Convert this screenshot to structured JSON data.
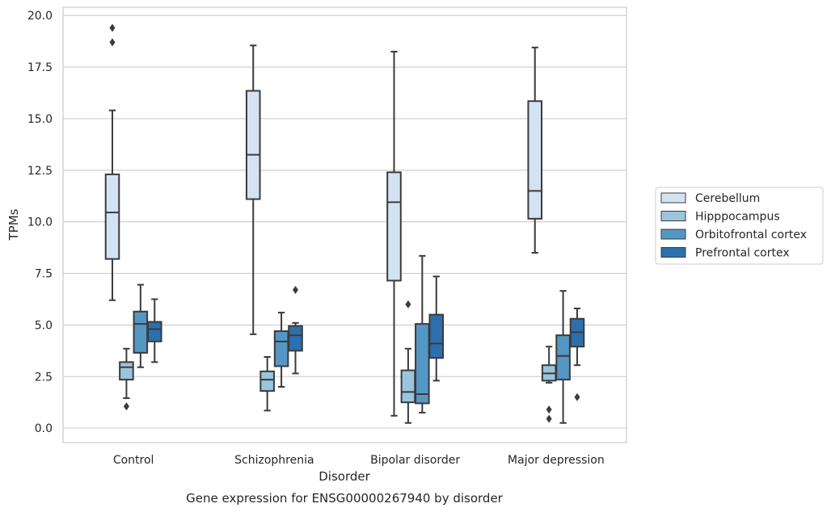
{
  "chart_data": {
    "type": "box",
    "title": "",
    "caption": "Gene expression for ENSG00000267940 by disorder",
    "xlabel": "Disorder",
    "ylabel": "TPMs",
    "ylim": [
      -0.7,
      20.4
    ],
    "yticks": [
      "0.0",
      "2.5",
      "5.0",
      "7.5",
      "10.0",
      "12.5",
      "15.0",
      "17.5",
      "20.0"
    ],
    "grid": "horizontal",
    "legend_position": "right",
    "categories": [
      "Control",
      "Schizophrenia",
      "Bipolar disorder",
      "Major depression"
    ],
    "series": [
      {
        "name": "Cerebellum",
        "color": "#d3e3f3",
        "boxes": [
          {
            "whisker_low": 6.2,
            "q1": 8.2,
            "median": 10.45,
            "q3": 12.3,
            "whisker_high": 15.4,
            "outliers": [
              18.7,
              19.4
            ]
          },
          {
            "whisker_low": 4.55,
            "q1": 11.1,
            "median": 13.25,
            "q3": 16.35,
            "whisker_high": 18.55,
            "outliers": []
          },
          {
            "whisker_low": 0.6,
            "q1": 7.15,
            "median": 10.95,
            "q3": 12.4,
            "whisker_high": 18.25,
            "outliers": []
          },
          {
            "whisker_low": 8.5,
            "q1": 10.15,
            "median": 11.5,
            "q3": 15.85,
            "whisker_high": 18.45,
            "outliers": []
          }
        ]
      },
      {
        "name": "Hipppocampus",
        "color": "#9ac5de",
        "boxes": [
          {
            "whisker_low": 1.45,
            "q1": 2.35,
            "median": 2.95,
            "q3": 3.2,
            "whisker_high": 3.85,
            "outliers": [
              1.05
            ]
          },
          {
            "whisker_low": 0.85,
            "q1": 1.8,
            "median": 2.35,
            "q3": 2.75,
            "whisker_high": 3.45,
            "outliers": []
          },
          {
            "whisker_low": 0.25,
            "q1": 1.25,
            "median": 1.75,
            "q3": 2.8,
            "whisker_high": 3.85,
            "outliers": [
              6.0
            ]
          },
          {
            "whisker_low": 2.2,
            "q1": 2.3,
            "median": 2.65,
            "q3": 3.05,
            "whisker_high": 3.95,
            "outliers": [
              0.45,
              0.9
            ]
          }
        ]
      },
      {
        "name": "Orbitofrontal cortex",
        "color": "#5497c5",
        "boxes": [
          {
            "whisker_low": 2.95,
            "q1": 3.65,
            "median": 5.05,
            "q3": 5.65,
            "whisker_high": 6.95,
            "outliers": []
          },
          {
            "whisker_low": 2.0,
            "q1": 3.0,
            "median": 4.2,
            "q3": 4.7,
            "whisker_high": 5.6,
            "outliers": []
          },
          {
            "whisker_low": 0.75,
            "q1": 1.2,
            "median": 1.65,
            "q3": 5.05,
            "whisker_high": 8.35,
            "outliers": []
          },
          {
            "whisker_low": 0.25,
            "q1": 2.35,
            "median": 3.5,
            "q3": 4.5,
            "whisker_high": 6.65,
            "outliers": []
          }
        ]
      },
      {
        "name": "Prefrontal cortex",
        "color": "#2c6fad",
        "boxes": [
          {
            "whisker_low": 3.2,
            "q1": 4.2,
            "median": 4.8,
            "q3": 5.15,
            "whisker_high": 6.25,
            "outliers": []
          },
          {
            "whisker_low": 2.65,
            "q1": 3.75,
            "median": 4.5,
            "q3": 4.95,
            "whisker_high": 5.1,
            "outliers": [
              6.7
            ]
          },
          {
            "whisker_low": 2.3,
            "q1": 3.4,
            "median": 4.1,
            "q3": 5.5,
            "whisker_high": 7.35,
            "outliers": []
          },
          {
            "whisker_low": 3.05,
            "q1": 3.95,
            "median": 4.65,
            "q3": 5.3,
            "whisker_high": 5.8,
            "outliers": [
              1.5
            ]
          }
        ]
      }
    ]
  }
}
